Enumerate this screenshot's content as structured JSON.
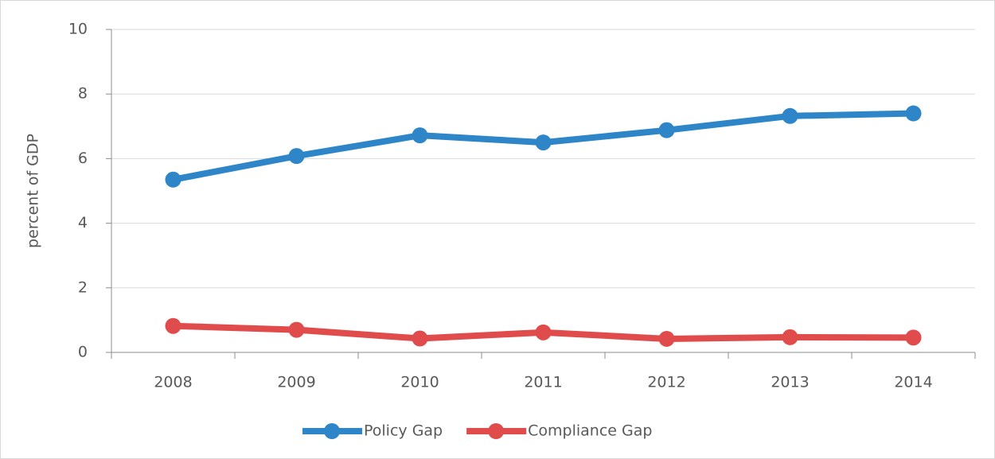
{
  "chart_data": {
    "type": "line",
    "y_label": "percent of GDP",
    "categories": [
      "2008",
      "2009",
      "2010",
      "2011",
      "2012",
      "2013",
      "2014"
    ],
    "series": [
      {
        "name": "Policy Gap",
        "color": "#2e86c8",
        "values": [
          5.35,
          6.08,
          6.72,
          6.5,
          6.88,
          7.32,
          7.4
        ]
      },
      {
        "name": "Compliance Gap",
        "color": "#e04c4c",
        "values": [
          0.82,
          0.7,
          0.43,
          0.62,
          0.42,
          0.47,
          0.46
        ]
      }
    ],
    "ylim": [
      0,
      10
    ],
    "yticks": [
      0,
      2,
      4,
      6,
      8,
      10
    ],
    "grid": true,
    "legend": "bottom"
  }
}
